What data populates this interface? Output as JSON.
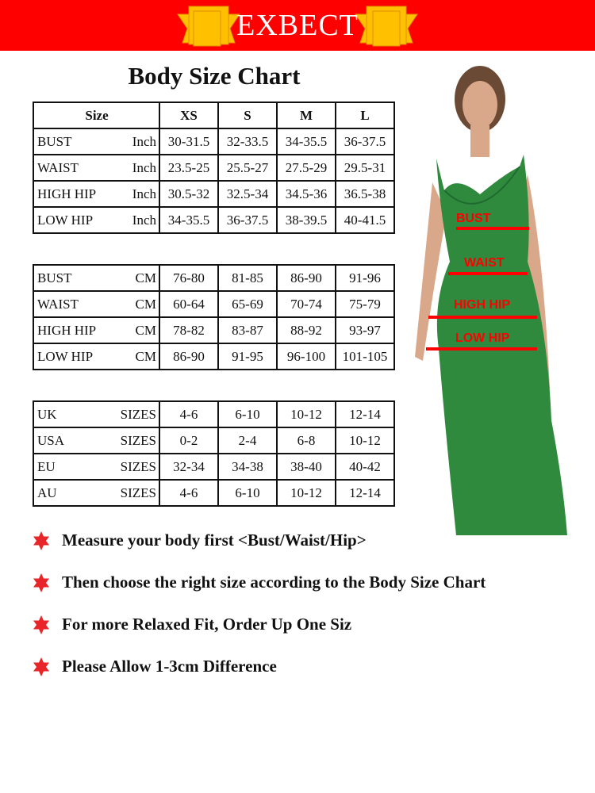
{
  "header": {
    "brand": "EXBECT",
    "bg_color": "#fe0000",
    "ribbon_color": "#ffc000"
  },
  "title": "Body Size Chart",
  "inch_table": {
    "headers": [
      "Size",
      "XS",
      "S",
      "M",
      "L"
    ],
    "rows": [
      {
        "label": "BUST",
        "unit": "Inch",
        "values": [
          "30-31.5",
          "32-33.5",
          "34-35.5",
          "36-37.5"
        ]
      },
      {
        "label": "WAIST",
        "unit": "Inch",
        "values": [
          "23.5-25",
          "25.5-27",
          "27.5-29",
          "29.5-31"
        ]
      },
      {
        "label": "HIGH HIP",
        "unit": "Inch",
        "values": [
          "30.5-32",
          "32.5-34",
          "34.5-36",
          "36.5-38"
        ]
      },
      {
        "label": "LOW HIP",
        "unit": "Inch",
        "values": [
          "34-35.5",
          "36-37.5",
          "38-39.5",
          "40-41.5"
        ]
      }
    ]
  },
  "cm_table": {
    "rows": [
      {
        "label": "BUST",
        "unit": "CM",
        "values": [
          "76-80",
          "81-85",
          "86-90",
          "91-96"
        ]
      },
      {
        "label": "WAIST",
        "unit": "CM",
        "values": [
          "60-64",
          "65-69",
          "70-74",
          "75-79"
        ]
      },
      {
        "label": "HIGH HIP",
        "unit": "CM",
        "values": [
          "78-82",
          "83-87",
          "88-92",
          "93-97"
        ]
      },
      {
        "label": "LOW HIP",
        "unit": "CM",
        "values": [
          "86-90",
          "91-95",
          "96-100",
          "101-105"
        ]
      }
    ]
  },
  "sizes_table": {
    "rows": [
      {
        "label": "UK",
        "unit": "SIZES",
        "values": [
          "4-6",
          "6-10",
          "10-12",
          "12-14"
        ]
      },
      {
        "label": "USA",
        "unit": "SIZES",
        "values": [
          "0-2",
          "2-4",
          "6-8",
          "10-12"
        ]
      },
      {
        "label": "EU",
        "unit": "SIZES",
        "values": [
          "32-34",
          "34-38",
          "38-40",
          "40-42"
        ]
      },
      {
        "label": "AU",
        "unit": "SIZES",
        "values": [
          "4-6",
          "6-10",
          "10-12",
          "12-14"
        ]
      }
    ]
  },
  "model": {
    "dress_color": "#2f8a3e",
    "labels": [
      "BUST",
      "WAIST",
      "HIGH HIP",
      "LOW HIP"
    ]
  },
  "tips": [
    {
      "icon": "red-star-icon",
      "text": "Measure your body first <Bust/Waist/Hip>"
    },
    {
      "icon": "red-star-icon",
      "text": "Then choose the right size according to the Body Size Chart"
    },
    {
      "icon": "red-star-icon",
      "text": "For more Relaxed Fit, Order Up One Siz"
    },
    {
      "icon": "red-star-icon",
      "text": "Please Allow 1-3cm Difference"
    }
  ]
}
